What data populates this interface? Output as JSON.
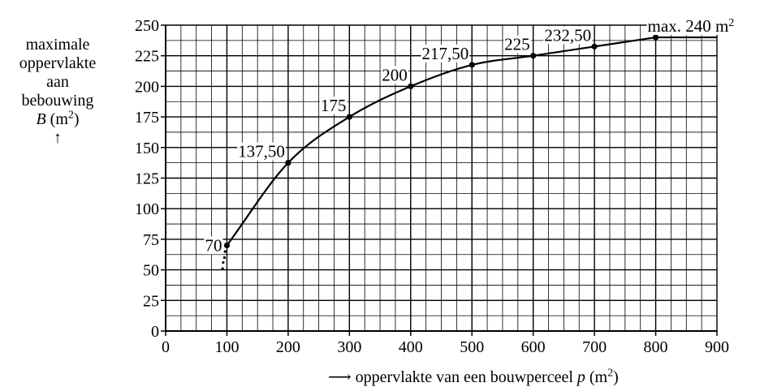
{
  "chart_data": {
    "type": "line",
    "xlim": [
      0,
      900
    ],
    "ylim": [
      0,
      250
    ],
    "x_major_ticks": [
      0,
      100,
      200,
      300,
      400,
      500,
      600,
      700,
      800,
      900
    ],
    "y_major_ticks": [
      0,
      25,
      50,
      75,
      100,
      125,
      150,
      175,
      200,
      225,
      250
    ],
    "x_minor_step": 25,
    "y_minor_step": 12.5,
    "grid": true,
    "ylabel_lines": [
      "maximale",
      "oppervlakte",
      "aan",
      "bebouwing"
    ],
    "ylabel_symbol": "B",
    "ylabel_unit_prefix": " (m",
    "ylabel_unit_sup": "2",
    "ylabel_unit_suffix": ")",
    "ylabel_arrow": "↑",
    "xlabel_arrow": "⟶",
    "xlabel_text": " oppervlakte van een bouwperceel ",
    "xlabel_symbol": "p",
    "xlabel_unit_prefix": " (m",
    "xlabel_unit_sup": "2",
    "xlabel_unit_suffix": ")",
    "series": [
      {
        "points": [
          {
            "x": 100,
            "y": 70,
            "label": "70"
          },
          {
            "x": 200,
            "y": 137.5,
            "label": "137,50"
          },
          {
            "x": 300,
            "y": 175,
            "label": "175"
          },
          {
            "x": 400,
            "y": 200,
            "label": "200"
          },
          {
            "x": 500,
            "y": 217.5,
            "label": "217,50"
          },
          {
            "x": 600,
            "y": 225,
            "label": "225"
          },
          {
            "x": 700,
            "y": 232.5,
            "label": "232,50"
          },
          {
            "x": 800,
            "y": 240,
            "label": "max. 240 m"
          }
        ],
        "max_label_sup": "2",
        "plateau_to_x": 900,
        "dotted_start": [
          {
            "x": 97,
            "y": 65
          },
          {
            "x": 96,
            "y": 60
          },
          {
            "x": 94,
            "y": 56
          },
          {
            "x": 93,
            "y": 51
          }
        ]
      }
    ]
  }
}
